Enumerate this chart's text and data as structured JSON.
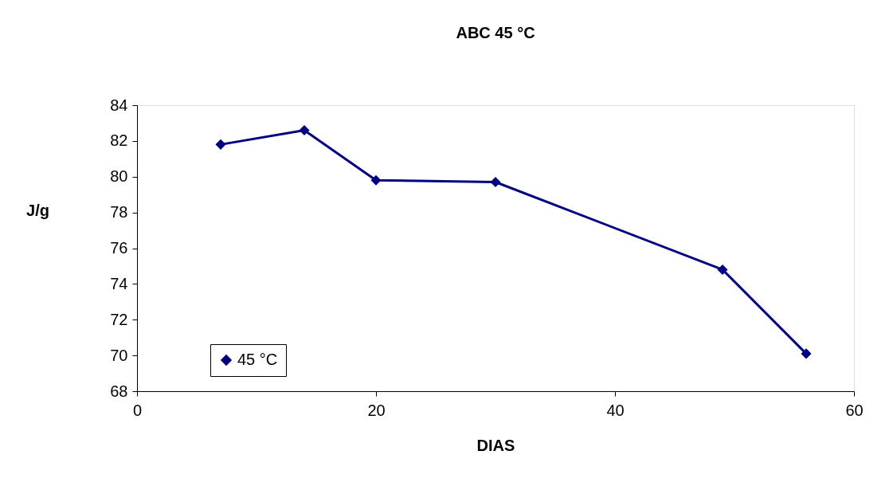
{
  "chart_data": {
    "type": "line",
    "title": "ABC 45 °C",
    "xlabel": "DIAS",
    "ylabel": "J/g",
    "x": [
      7,
      14,
      20,
      30,
      49,
      56
    ],
    "series": [
      {
        "name": "45 °C",
        "color": "#000080",
        "values": [
          81.8,
          82.6,
          79.8,
          79.7,
          74.8,
          70.1
        ]
      }
    ],
    "xlim": [
      0,
      60
    ],
    "xticks": [
      0,
      20,
      40,
      60
    ],
    "ylim": [
      68,
      84
    ],
    "yticks": [
      68,
      70,
      72,
      74,
      76,
      78,
      80,
      82,
      84
    ],
    "grid": false,
    "legend": "bottom left",
    "marker": "diamond",
    "line_style": "solid"
  }
}
